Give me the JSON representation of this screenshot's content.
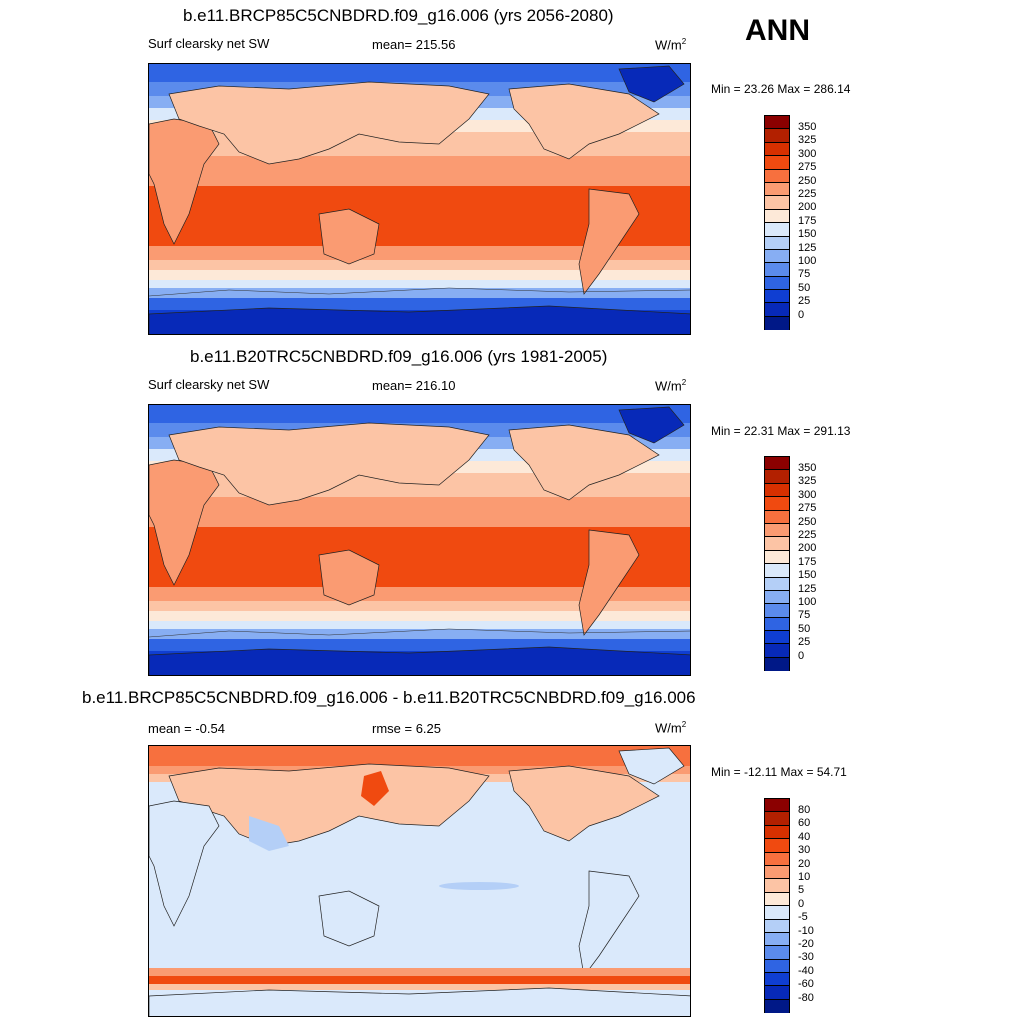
{
  "season": "ANN",
  "panels": [
    {
      "title": "b.e11.BRCP85C5CNBDRD.f09_g16.006 (yrs 2056-2080)",
      "left_label": "Surf clearsky net SW",
      "mid_label": "mean= 215.56",
      "units_base": "W/m",
      "units_exp": "2",
      "minmax": "Min =  23.26 Max = 286.14",
      "kind": "field"
    },
    {
      "title": "b.e11.B20TRC5CNBDRD.f09_g16.006 (yrs 1981-2005)",
      "left_label": "Surf clearsky net SW",
      "mid_label": "mean= 216.10",
      "units_base": "W/m",
      "units_exp": "2",
      "minmax": "Min =  22.31 Max = 291.13",
      "kind": "field"
    },
    {
      "title": "b.e11.BRCP85C5CNBDRD.f09_g16.006 - b.e11.B20TRC5CNBDRD.f09_g16.006",
      "left_label": "mean =  -0.54",
      "mid_label": "rmse =   6.25",
      "units_base": "W/m",
      "units_exp": "2",
      "minmax": "Min = -12.11 Max =  54.71",
      "kind": "diff"
    }
  ],
  "colorbar_field": {
    "labels": [
      "350",
      "325",
      "300",
      "275",
      "250",
      "225",
      "200",
      "175",
      "150",
      "125",
      "100",
      "75",
      "50",
      "25",
      "0"
    ],
    "colors": [
      "#8b0000",
      "#b22000",
      "#d73000",
      "#f04a10",
      "#f7703e",
      "#fa9b72",
      "#fcc4a5",
      "#fde9d8",
      "#dae9fb",
      "#b4cff7",
      "#87aef3",
      "#5b8bec",
      "#2f64e3",
      "#0f3ed2",
      "#0729b8",
      "#001887"
    ]
  },
  "colorbar_diff": {
    "labels": [
      "80",
      "60",
      "40",
      "30",
      "20",
      "10",
      "5",
      "0",
      "-5",
      "-10",
      "-20",
      "-30",
      "-40",
      "-60",
      "-80"
    ],
    "colors": [
      "#8b0000",
      "#b22000",
      "#d73000",
      "#f04a10",
      "#f7703e",
      "#fa9b72",
      "#fcc4a5",
      "#fde9d8",
      "#dae9fb",
      "#b4cff7",
      "#87aef3",
      "#5b8bec",
      "#2f64e3",
      "#0f3ed2",
      "#0729b8",
      "#001887"
    ]
  }
}
